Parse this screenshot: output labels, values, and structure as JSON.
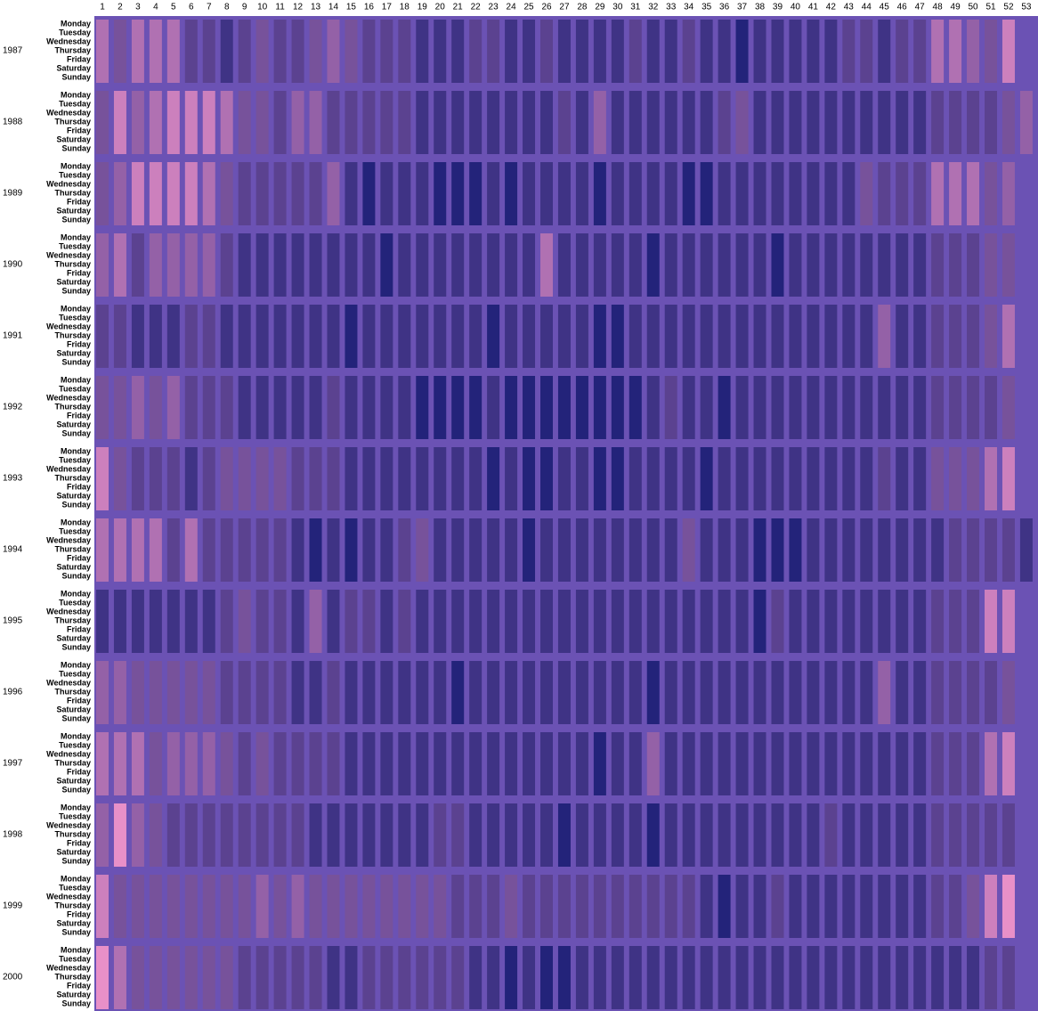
{
  "chart_data": {
    "type": "heatmap",
    "weeks": [
      1,
      2,
      3,
      4,
      5,
      6,
      7,
      8,
      9,
      10,
      11,
      12,
      13,
      14,
      15,
      16,
      17,
      18,
      19,
      20,
      21,
      22,
      23,
      24,
      25,
      26,
      27,
      28,
      29,
      30,
      31,
      32,
      33,
      34,
      35,
      36,
      37,
      38,
      39,
      40,
      41,
      42,
      43,
      44,
      45,
      46,
      47,
      48,
      49,
      50,
      51,
      52,
      53
    ],
    "years": [
      1987,
      1988,
      1989,
      1990,
      1991,
      1992,
      1993,
      1994,
      1995,
      1996,
      1997,
      1998,
      1999,
      2000
    ],
    "days": [
      "Monday",
      "Tuesday",
      "Wednesday",
      "Thursday",
      "Friday",
      "Saturday",
      "Sunday"
    ],
    "colors": [
      "#23237a",
      "#e890c8"
    ],
    "background": "#6b52b4",
    "values": [
      [
        7,
        5,
        7,
        7,
        7,
        4,
        4,
        3,
        4,
        5,
        4,
        4,
        5,
        6,
        5,
        4,
        4,
        4,
        3,
        3,
        3,
        4,
        4,
        3,
        3,
        4,
        3,
        3,
        3,
        3,
        4,
        3,
        3,
        4,
        3,
        3,
        2,
        3,
        3,
        3,
        3,
        3,
        4,
        4,
        3,
        4,
        4,
        7,
        7,
        6,
        5,
        8,
        null
      ],
      [
        5,
        8,
        6,
        7,
        8,
        8,
        8,
        7,
        5,
        5,
        4,
        6,
        6,
        4,
        4,
        4,
        4,
        4,
        3,
        3,
        3,
        3,
        3,
        3,
        3,
        3,
        4,
        3,
        6,
        3,
        3,
        3,
        3,
        3,
        3,
        4,
        5,
        3,
        3,
        3,
        3,
        3,
        3,
        3,
        3,
        3,
        3,
        4,
        4,
        4,
        4,
        5,
        6
      ],
      [
        5,
        6,
        8,
        8,
        8,
        8,
        7,
        5,
        4,
        4,
        4,
        4,
        4,
        6,
        3,
        2,
        3,
        3,
        3,
        2,
        2,
        2,
        3,
        2,
        3,
        3,
        3,
        3,
        2,
        3,
        3,
        3,
        3,
        2,
        2,
        3,
        3,
        3,
        3,
        3,
        3,
        3,
        3,
        5,
        4,
        4,
        4,
        7,
        7,
        7,
        5,
        6,
        null
      ],
      [
        6,
        7,
        4,
        6,
        6,
        6,
        6,
        4,
        3,
        3,
        3,
        3,
        3,
        3,
        3,
        3,
        2,
        3,
        3,
        3,
        3,
        3,
        3,
        3,
        3,
        7,
        3,
        3,
        3,
        3,
        3,
        2,
        3,
        3,
        3,
        3,
        3,
        3,
        2,
        3,
        3,
        3,
        3,
        3,
        3,
        3,
        3,
        4,
        4,
        4,
        5,
        5,
        null
      ],
      [
        4,
        4,
        3,
        3,
        3,
        4,
        4,
        3,
        3,
        3,
        3,
        3,
        3,
        3,
        2,
        3,
        3,
        3,
        3,
        3,
        3,
        3,
        2,
        3,
        3,
        3,
        3,
        3,
        2,
        2,
        3,
        3,
        3,
        3,
        3,
        3,
        3,
        3,
        3,
        3,
        3,
        3,
        3,
        3,
        6,
        3,
        3,
        4,
        4,
        4,
        5,
        7,
        null
      ],
      [
        5,
        5,
        6,
        5,
        6,
        4,
        4,
        4,
        3,
        3,
        3,
        3,
        3,
        4,
        3,
        3,
        3,
        3,
        2,
        2,
        2,
        2,
        3,
        2,
        2,
        2,
        2,
        2,
        2,
        2,
        2,
        3,
        4,
        3,
        3,
        2,
        3,
        3,
        3,
        3,
        3,
        3,
        3,
        3,
        3,
        3,
        3,
        4,
        4,
        4,
        4,
        5,
        null
      ],
      [
        8,
        5,
        4,
        4,
        4,
        3,
        4,
        5,
        5,
        5,
        5,
        4,
        4,
        4,
        3,
        3,
        3,
        3,
        3,
        3,
        3,
        3,
        2,
        3,
        2,
        2,
        3,
        3,
        2,
        2,
        3,
        3,
        3,
        3,
        2,
        3,
        3,
        3,
        3,
        3,
        3,
        3,
        3,
        3,
        4,
        3,
        3,
        5,
        5,
        5,
        7,
        8,
        null
      ],
      [
        7,
        7,
        7,
        7,
        4,
        7,
        4,
        4,
        4,
        4,
        4,
        3,
        2,
        3,
        2,
        3,
        3,
        4,
        5,
        3,
        3,
        3,
        3,
        3,
        2,
        3,
        3,
        3,
        3,
        3,
        3,
        3,
        3,
        5,
        3,
        3,
        3,
        2,
        2,
        2,
        3,
        3,
        3,
        3,
        3,
        3,
        3,
        3,
        4,
        4,
        4,
        4,
        3
      ],
      [
        3,
        3,
        3,
        3,
        3,
        3,
        3,
        4,
        5,
        4,
        4,
        3,
        6,
        3,
        4,
        4,
        3,
        4,
        3,
        3,
        3,
        3,
        3,
        3,
        3,
        3,
        3,
        3,
        3,
        3,
        3,
        3,
        3,
        3,
        3,
        3,
        3,
        2,
        4,
        3,
        3,
        3,
        3,
        3,
        3,
        3,
        3,
        4,
        4,
        4,
        8,
        8,
        null
      ],
      [
        6,
        6,
        5,
        5,
        5,
        5,
        5,
        4,
        4,
        4,
        4,
        3,
        3,
        4,
        3,
        3,
        3,
        3,
        3,
        3,
        2,
        3,
        3,
        3,
        3,
        3,
        3,
        3,
        3,
        3,
        3,
        2,
        3,
        3,
        3,
        3,
        3,
        3,
        3,
        3,
        3,
        3,
        3,
        3,
        6,
        3,
        3,
        4,
        4,
        4,
        4,
        5,
        null
      ],
      [
        7,
        7,
        7,
        5,
        6,
        6,
        6,
        5,
        4,
        5,
        4,
        4,
        4,
        4,
        3,
        3,
        3,
        3,
        3,
        3,
        3,
        3,
        3,
        3,
        3,
        3,
        3,
        3,
        2,
        3,
        3,
        6,
        3,
        3,
        3,
        3,
        3,
        3,
        3,
        3,
        3,
        3,
        3,
        3,
        3,
        3,
        3,
        4,
        4,
        4,
        7,
        8,
        null
      ],
      [
        6,
        9,
        6,
        5,
        4,
        4,
        4,
        4,
        4,
        4,
        4,
        4,
        3,
        3,
        3,
        3,
        3,
        3,
        3,
        4,
        4,
        3,
        3,
        3,
        3,
        3,
        2,
        3,
        3,
        3,
        3,
        2,
        3,
        3,
        3,
        3,
        3,
        3,
        3,
        3,
        3,
        4,
        3,
        3,
        3,
        3,
        3,
        4,
        4,
        4,
        4,
        4,
        null
      ],
      [
        8,
        5,
        5,
        5,
        5,
        5,
        5,
        5,
        5,
        6,
        5,
        6,
        5,
        5,
        5,
        5,
        5,
        5,
        5,
        5,
        4,
        4,
        4,
        5,
        4,
        4,
        4,
        4,
        4,
        4,
        4,
        4,
        4,
        4,
        3,
        2,
        3,
        3,
        4,
        3,
        3,
        3,
        3,
        3,
        3,
        3,
        3,
        4,
        4,
        5,
        8,
        9,
        null
      ],
      [
        9,
        7,
        5,
        5,
        5,
        5,
        5,
        5,
        4,
        4,
        4,
        4,
        4,
        3,
        3,
        4,
        4,
        4,
        4,
        4,
        4,
        3,
        3,
        2,
        3,
        2,
        2,
        3,
        3,
        3,
        3,
        3,
        3,
        3,
        3,
        3,
        3,
        3,
        3,
        3,
        3,
        3,
        3,
        3,
        3,
        3,
        3,
        3,
        3,
        3,
        4,
        4,
        null
      ]
    ]
  }
}
